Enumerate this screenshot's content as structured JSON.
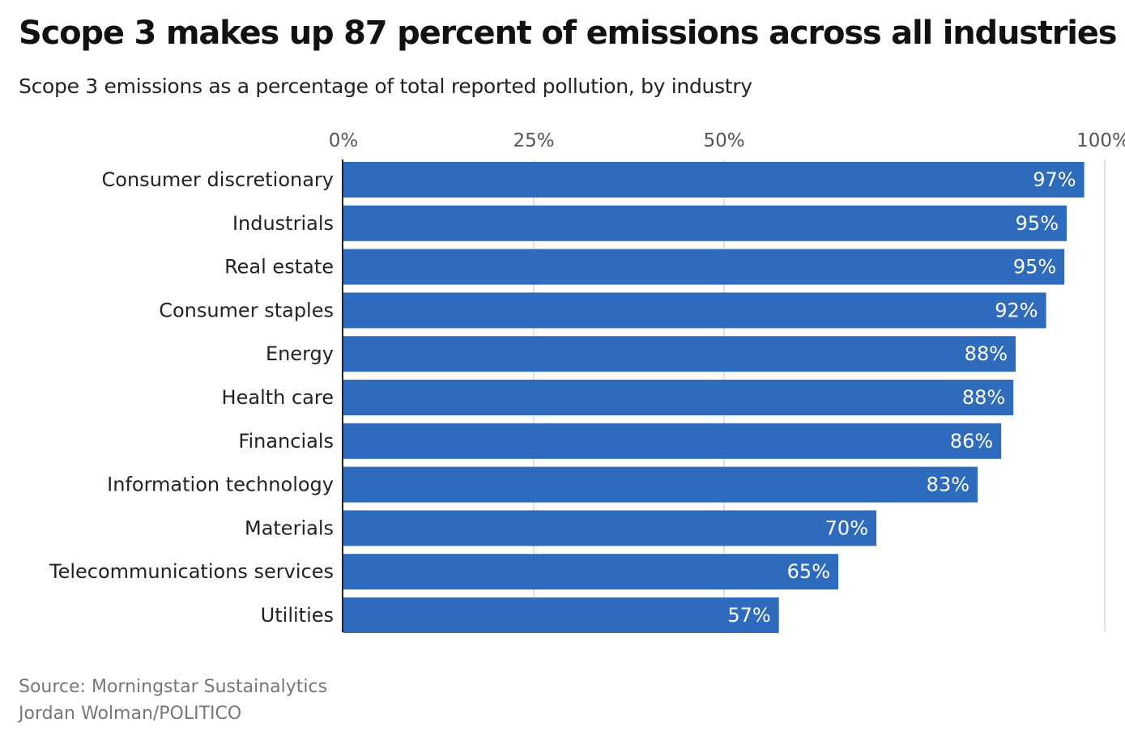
{
  "chart_data": {
    "type": "bar",
    "orientation": "horizontal",
    "title": "Scope 3 makes up 87 percent of emissions across all industries",
    "subtitle": "Scope 3 emissions as a percentage of total reported pollution, by industry",
    "categories": [
      "Consumer discretionary",
      "Industrials",
      "Real estate",
      "Consumer staples",
      "Energy",
      "Health care",
      "Financials",
      "Information technology",
      "Materials",
      "Telecommunications services",
      "Utilities"
    ],
    "values": [
      97.3,
      95.0,
      94.7,
      92.3,
      88.3,
      88.0,
      86.4,
      83.3,
      70.0,
      65.0,
      57.2
    ],
    "data_labels": [
      "97%",
      "95%",
      "95%",
      "92%",
      "88%",
      "88%",
      "86%",
      "83%",
      "70%",
      "65%",
      "57%"
    ],
    "x_ticks": [
      0,
      25,
      50,
      100
    ],
    "x_tick_labels": [
      "0%",
      "25%",
      "50%",
      "100%"
    ],
    "xlim": [
      0,
      100
    ],
    "grid": true,
    "legend": "none",
    "colors": {
      "bar": "#2e6bbd",
      "grid": "#d9d9d9",
      "axis": "#222222"
    }
  },
  "footer": {
    "source": "Source: Morningstar Sustainalytics",
    "credit": "Jordan Wolman/POLITICO"
  }
}
